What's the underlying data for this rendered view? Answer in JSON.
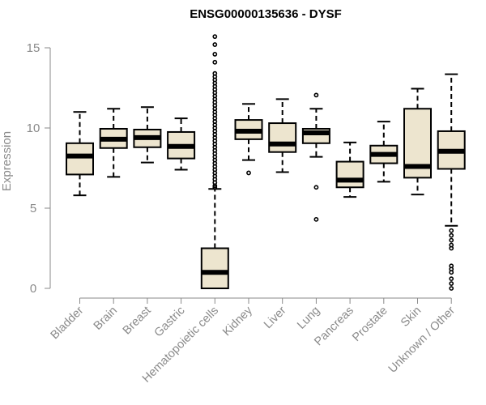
{
  "chart_data": {
    "type": "box",
    "title": "ENSG00000135636 - DYSF",
    "xlabel": "",
    "ylabel": "Expression",
    "ylim": [
      0,
      15.7
    ],
    "yticks": [
      0,
      5,
      10,
      15
    ],
    "grid": false,
    "colors": {
      "box_fill": "#ede5cf",
      "stroke": "#000000",
      "axis": "#8a8a8a"
    },
    "categories": [
      "Bladder",
      "Brain",
      "Breast",
      "Gastric",
      "Hematopoietic cells",
      "Kidney",
      "Liver",
      "Lung",
      "Pancreas",
      "Prostate",
      "Skin",
      "Unknown / Other"
    ],
    "boxes": [
      {
        "category": "Bladder",
        "whisker_low": 5.8,
        "q1": 7.1,
        "median": 8.25,
        "q3": 9.05,
        "whisker_high": 11.0,
        "outliers": []
      },
      {
        "category": "Brain",
        "whisker_low": 6.95,
        "q1": 8.75,
        "median": 9.3,
        "q3": 9.95,
        "whisker_high": 11.2,
        "outliers": []
      },
      {
        "category": "Breast",
        "whisker_low": 7.85,
        "q1": 8.8,
        "median": 9.4,
        "q3": 9.9,
        "whisker_high": 11.3,
        "outliers": []
      },
      {
        "category": "Gastric",
        "whisker_low": 7.4,
        "q1": 8.1,
        "median": 8.85,
        "q3": 9.75,
        "whisker_high": 10.6,
        "outliers": []
      },
      {
        "category": "Hematopoietic cells",
        "whisker_low": 0.0,
        "q1": 0.0,
        "median": 1.0,
        "q3": 2.5,
        "whisker_high": 6.2,
        "outliers": [
          6.3,
          6.4,
          6.6,
          6.8,
          7.0,
          7.2,
          7.4,
          7.6,
          7.8,
          8.0,
          8.2,
          8.4,
          8.6,
          8.8,
          9.0,
          9.2,
          9.4,
          9.6,
          9.8,
          10.0,
          10.2,
          10.4,
          10.6,
          10.8,
          11.0,
          11.2,
          11.4,
          11.6,
          11.8,
          12.0,
          12.2,
          12.4,
          12.6,
          12.8,
          13.0,
          13.2,
          13.4,
          14.1,
          14.6,
          15.2,
          15.7
        ]
      },
      {
        "category": "Kidney",
        "whisker_low": 8.0,
        "q1": 9.3,
        "median": 9.8,
        "q3": 10.5,
        "whisker_high": 11.5,
        "outliers": [
          7.2
        ]
      },
      {
        "category": "Liver",
        "whisker_low": 7.25,
        "q1": 8.5,
        "median": 9.0,
        "q3": 10.3,
        "whisker_high": 11.8,
        "outliers": []
      },
      {
        "category": "Lung",
        "whisker_low": 8.2,
        "q1": 9.05,
        "median": 9.7,
        "q3": 9.95,
        "whisker_high": 11.2,
        "outliers": [
          12.05,
          6.3,
          4.3
        ]
      },
      {
        "category": "Pancreas",
        "whisker_low": 5.7,
        "q1": 6.3,
        "median": 6.75,
        "q3": 7.9,
        "whisker_high": 9.1,
        "outliers": []
      },
      {
        "category": "Prostate",
        "whisker_low": 6.65,
        "q1": 7.8,
        "median": 8.35,
        "q3": 8.9,
        "whisker_high": 10.4,
        "outliers": []
      },
      {
        "category": "Skin",
        "whisker_low": 5.85,
        "q1": 6.9,
        "median": 7.6,
        "q3": 11.2,
        "whisker_high": 12.45,
        "outliers": []
      },
      {
        "category": "Unknown / Other",
        "whisker_low": 3.9,
        "q1": 7.45,
        "median": 8.55,
        "q3": 9.8,
        "whisker_high": 13.35,
        "outliers": [
          3.6,
          3.3,
          3.0,
          2.7,
          2.5,
          1.4,
          1.2,
          1.0,
          0.6,
          0.3,
          0.0
        ]
      }
    ]
  }
}
